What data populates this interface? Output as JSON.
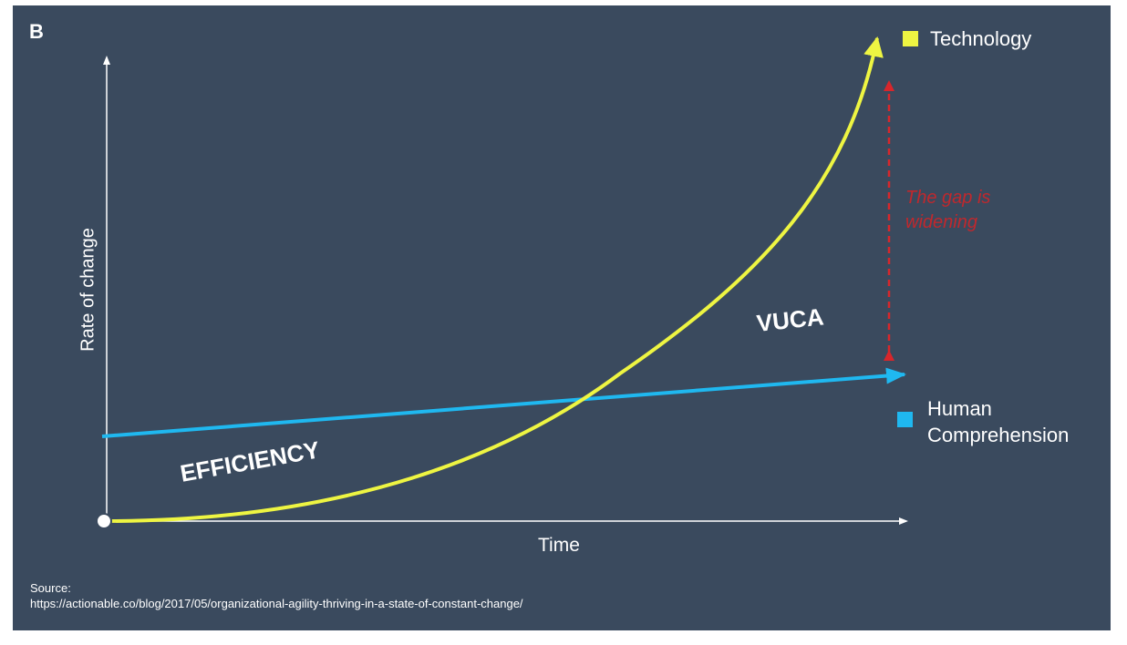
{
  "logo": "B",
  "legend": {
    "items": [
      {
        "label": "Technology",
        "color": "#eef542"
      },
      {
        "label": "Human Comprehension",
        "color": "#1fb8f0"
      }
    ]
  },
  "axes": {
    "y_label": "Rate of change",
    "x_label": "Time"
  },
  "annotations": {
    "gap": "The gap is widening",
    "efficiency": "EFFICIENCY",
    "vuca": "VUCA"
  },
  "source": {
    "label": "Source:",
    "url": "https://actionable.co/blog/2017/05/organizational-agility-thriving-in-a-state-of-constant-change/"
  }
}
